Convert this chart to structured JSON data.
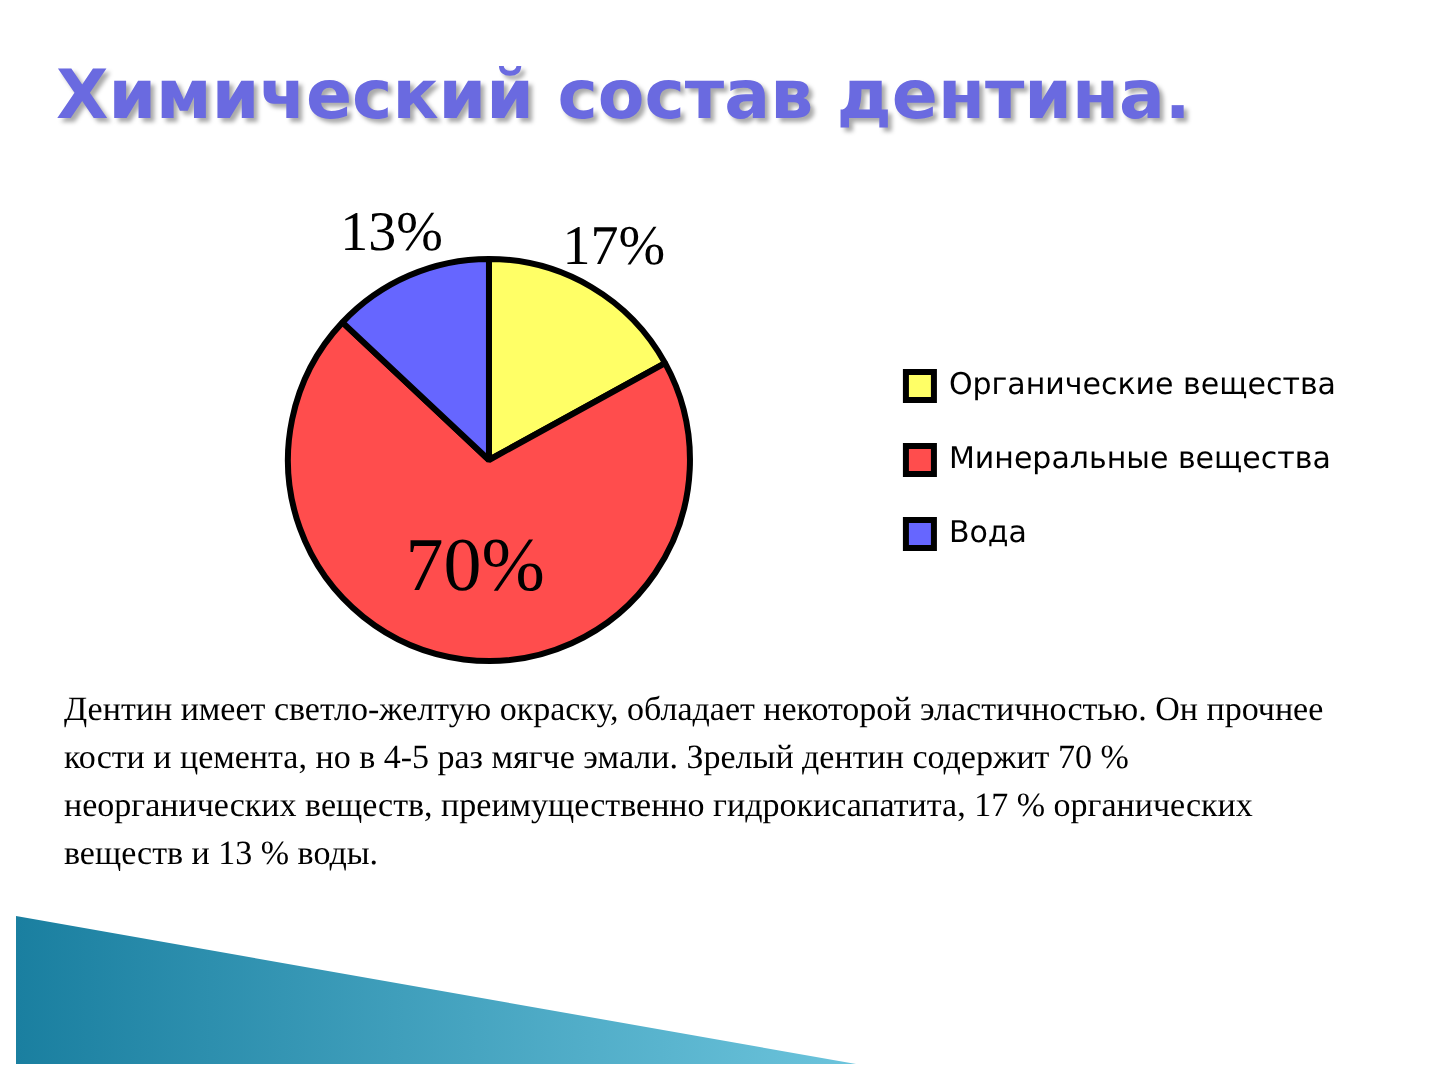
{
  "chart_data": {
    "type": "pie",
    "title": "Химический состав дентина.",
    "categories": [
      "Органические вещества",
      "Минеральные вещества",
      "Вода"
    ],
    "values": [
      17,
      70,
      13
    ],
    "colors": [
      "#ffff66",
      "#ff4d4d",
      "#6666ff"
    ],
    "value_labels": [
      "17%",
      "70%",
      "13%"
    ],
    "legend": "right",
    "annotations": [
      "Дентин имеет светло-желтую окраску, обладает некоторой эластичностью. Он прочнее кости и цемента, но в 4-5 раз мягче эмали. Зрелый дентин содержит 70 % неорганических веществ, преимущественно гидрокисапатита, 17 % органических веществ и 13 % воды."
    ]
  }
}
